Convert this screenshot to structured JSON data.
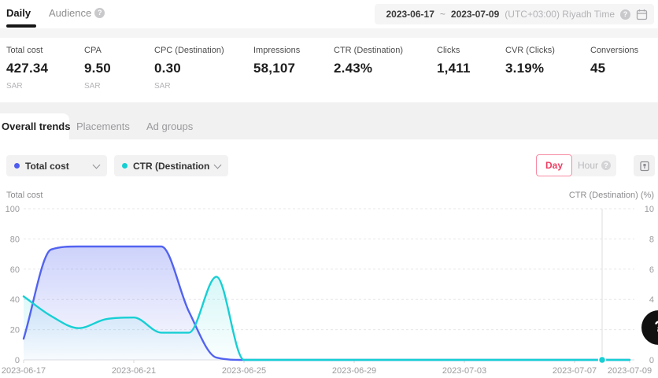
{
  "header": {
    "tabs": [
      {
        "label": "Daily",
        "active": true
      },
      {
        "label": "Audience",
        "active": false,
        "has_info": true
      }
    ],
    "date_range": {
      "start": "2023-06-17",
      "separator": "~",
      "end": "2023-07-09",
      "timezone": "(UTC+03:00) Riyadh Time"
    }
  },
  "metrics": [
    {
      "label": "Total cost",
      "value": "427.34",
      "unit": "SAR"
    },
    {
      "label": "CPA",
      "value": "9.50",
      "unit": "SAR"
    },
    {
      "label": "CPC (Destination)",
      "value": "0.30",
      "unit": "SAR"
    },
    {
      "label": "Impressions",
      "value": "58,107",
      "unit": ""
    },
    {
      "label": "CTR (Destination)",
      "value": "2.43%",
      "unit": ""
    },
    {
      "label": "Clicks",
      "value": "1,411",
      "unit": ""
    },
    {
      "label": "CVR (Clicks)",
      "value": "3.19%",
      "unit": ""
    },
    {
      "label": "Conversions",
      "value": "45",
      "unit": ""
    }
  ],
  "section_tabs": [
    {
      "label": "Overall trends",
      "active": true
    },
    {
      "label": "Placements",
      "active": false
    },
    {
      "label": "Ad groups",
      "active": false
    }
  ],
  "chart_controls": {
    "metric_selectors": [
      {
        "label": "Total cost",
        "color": "#4e5cf0"
      },
      {
        "label": "CTR (Destination",
        "color": "#15cfd2"
      }
    ],
    "granularity": {
      "day_label": "Day",
      "hour_label": "Hour"
    },
    "accent_pink": "#ee3f63"
  },
  "help_label": "?",
  "chart_data": {
    "type": "line",
    "x": [
      "2023-06-17",
      "2023-06-18",
      "2023-06-19",
      "2023-06-20",
      "2023-06-21",
      "2023-06-22",
      "2023-06-23",
      "2023-06-24",
      "2023-06-25",
      "2023-06-26",
      "2023-06-27",
      "2023-06-28",
      "2023-06-29",
      "2023-06-30",
      "2023-07-01",
      "2023-07-02",
      "2023-07-03",
      "2023-07-04",
      "2023-07-05",
      "2023-07-06",
      "2023-07-07",
      "2023-07-08",
      "2023-07-09"
    ],
    "x_tick_labels": [
      "2023-06-17",
      "2023-06-21",
      "2023-06-25",
      "2023-06-29",
      "2023-07-03",
      "2023-07-07",
      "2023-07-09"
    ],
    "series": [
      {
        "name": "Total cost",
        "axis": "left",
        "color": "#5263f0",
        "values": [
          14,
          73,
          75,
          75,
          75,
          75,
          32,
          1.5,
          0,
          0,
          0,
          0,
          0,
          0,
          0,
          0,
          0,
          0,
          0,
          0,
          0,
          0,
          0
        ]
      },
      {
        "name": "CTR (Destination)",
        "axis": "right",
        "color": "#17cfd4",
        "values": [
          4.2,
          2.9,
          2.1,
          2.7,
          2.8,
          1.8,
          1.8,
          5.5,
          0,
          0,
          0,
          0,
          0,
          0,
          0,
          0,
          0,
          0,
          0,
          0,
          0,
          0,
          0
        ]
      }
    ],
    "left_axis": {
      "title": "Total cost",
      "min": 0,
      "max": 100,
      "ticks": [
        0,
        20,
        40,
        60,
        80,
        100
      ]
    },
    "right_axis": {
      "title": "CTR (Destination) (%)",
      "min": 0,
      "max": 10,
      "ticks": [
        0,
        2,
        4,
        6,
        8,
        10
      ]
    },
    "grid": "dashed-horizontal",
    "legend_position": "top-left-dropdowns",
    "hover_marker": {
      "x": "2023-07-08",
      "series": "CTR (Destination)",
      "value": 0
    }
  }
}
